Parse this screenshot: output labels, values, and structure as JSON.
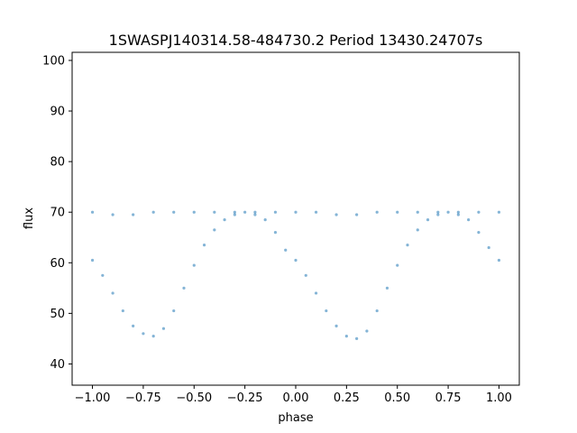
{
  "chart_data": {
    "type": "scatter",
    "title": "1SWASPJ140314.58-484730.2 Period 13430.24707s",
    "xlabel": "phase",
    "ylabel": "flux",
    "xlim": [
      -1.1,
      1.1
    ],
    "ylim": [
      35.8,
      101.6
    ],
    "xticks": [
      -1.0,
      -0.75,
      -0.5,
      -0.25,
      0.0,
      0.25,
      0.5,
      0.75,
      1.0
    ],
    "xtick_labels": [
      "−1.00",
      "−0.75",
      "−0.50",
      "−0.25",
      "0.00",
      "0.25",
      "0.50",
      "0.75",
      "1.00"
    ],
    "yticks": [
      40,
      50,
      60,
      70,
      80,
      90,
      100
    ],
    "ytick_labels": [
      "40",
      "50",
      "60",
      "70",
      "80",
      "90",
      "100"
    ],
    "grid": false,
    "series": [
      {
        "color": "#1f77b4",
        "marker_alpha": 0.55,
        "x": [
          -1.0,
          -0.95,
          -0.9,
          -0.85,
          -0.8,
          -0.75,
          -0.7,
          -0.65,
          -0.6,
          -0.55,
          -0.5,
          -0.45,
          -0.4,
          -0.35,
          -0.3,
          -0.25,
          -0.2,
          -0.15,
          -0.1,
          -0.05,
          0.0,
          0.05,
          0.1,
          0.15,
          0.2,
          0.25,
          0.3,
          0.35,
          0.4,
          0.45,
          0.5,
          0.55,
          0.6,
          0.65,
          0.7,
          0.75,
          0.8,
          0.85,
          0.9,
          0.95,
          1.0
        ],
        "y": [
          60.5,
          57.5,
          54.0,
          50.5,
          47.5,
          46.0,
          45.5,
          47.0,
          50.5,
          55.0,
          59.5,
          63.5,
          66.5,
          68.5,
          69.5,
          70.0,
          69.5,
          68.5,
          66.0,
          62.5,
          60.5,
          57.5,
          54.0,
          50.5,
          47.5,
          45.5,
          45.0,
          46.5,
          50.5,
          55.0,
          59.5,
          63.5,
          66.5,
          68.5,
          69.5,
          70.0,
          69.5,
          68.5,
          66.0,
          63.0,
          60.5
        ]
      },
      {
        "color": "#1f77b4",
        "marker_alpha": 0.55,
        "x": [
          -1.0,
          -0.9,
          -0.8,
          -0.7,
          -0.6,
          -0.5,
          -0.4,
          -0.3,
          -0.2,
          -0.1,
          0.0,
          0.1,
          0.2,
          0.3,
          0.4,
          0.5,
          0.6,
          0.7,
          0.8,
          0.9,
          1.0
        ],
        "y": [
          70.0,
          69.5,
          69.5,
          70.0,
          70.0,
          70.0,
          70.0,
          70.0,
          70.0,
          70.0,
          70.0,
          70.0,
          69.5,
          69.5,
          70.0,
          70.0,
          70.0,
          70.0,
          70.0,
          70.0,
          70.0
        ]
      }
    ]
  }
}
